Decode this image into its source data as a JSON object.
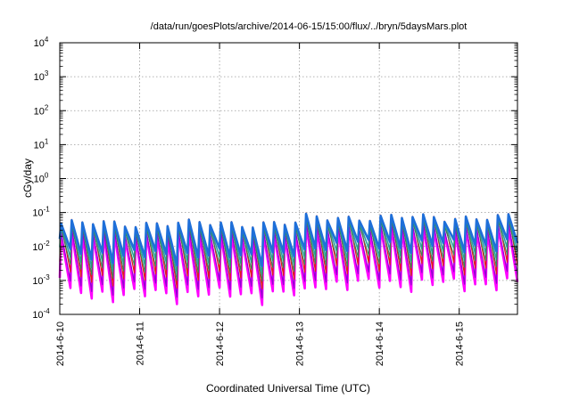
{
  "chart_data": {
    "type": "line",
    "title": "/data/run/goesPlots/archive/2014-06-15/15:00/flux/../bryn/5daysMars.plot",
    "xlabel": "Coordinated Universal Time (UTC)",
    "ylabel": "cGy/day",
    "yscale": "log",
    "ylim": [
      0.0001,
      10000
    ],
    "xlim": [
      "2014-06-10 00:00",
      "2014-06-15 17:30"
    ],
    "grid": true,
    "x_ticks": [
      "2014-6-10",
      "2014-6-11",
      "2014-6-12",
      "2014-6-13",
      "2014-6-14",
      "2014-6-15"
    ],
    "y_ticks": [
      {
        "base": "10",
        "exp": "4",
        "value": 10000
      },
      {
        "base": "10",
        "exp": "3",
        "value": 1000
      },
      {
        "base": "10",
        "exp": "2",
        "value": 100
      },
      {
        "base": "10",
        "exp": "1",
        "value": 10
      },
      {
        "base": "10",
        "exp": "0",
        "value": 1
      },
      {
        "base": "10",
        "exp": "-1",
        "value": 0.1
      },
      {
        "base": "10",
        "exp": "-2",
        "value": 0.01
      },
      {
        "base": "10",
        "exp": "-3",
        "value": 0.001
      },
      {
        "base": "10",
        "exp": "-4",
        "value": 0.0001
      }
    ],
    "sawtooth": {
      "period_hours": 3.2,
      "start": "2014-06-10 00:00",
      "end": "2014-06-15 17:30",
      "regime_change": "2014-06-13 00:00",
      "before": {
        "peak_base": 0.05,
        "trough_base": 0.0004
      },
      "after": {
        "peak_base": 0.075,
        "trough_base": 0.0008
      }
    },
    "series": [
      {
        "color": "#ff00ff",
        "peak_factor": 0.45,
        "trough_factor": 1.0,
        "width": 2.6
      },
      {
        "color": "#9400d3",
        "peak_factor": 0.55,
        "trough_factor": 1.6,
        "width": 1.2
      },
      {
        "color": "#e41a1c",
        "peak_factor": 1.0,
        "trough_factor": 3.0,
        "width": 1.3
      },
      {
        "color": "#2ca0a0",
        "peak_factor": 0.85,
        "trough_factor": 8.0,
        "width": 1.6
      },
      {
        "color": "#2e8b57",
        "peak_factor": 0.7,
        "trough_factor": 5.0,
        "width": 1.0
      },
      {
        "color": "#1e6fd9",
        "peak_factor": 0.95,
        "trough_factor": 14.0,
        "width": 2.6
      }
    ]
  }
}
